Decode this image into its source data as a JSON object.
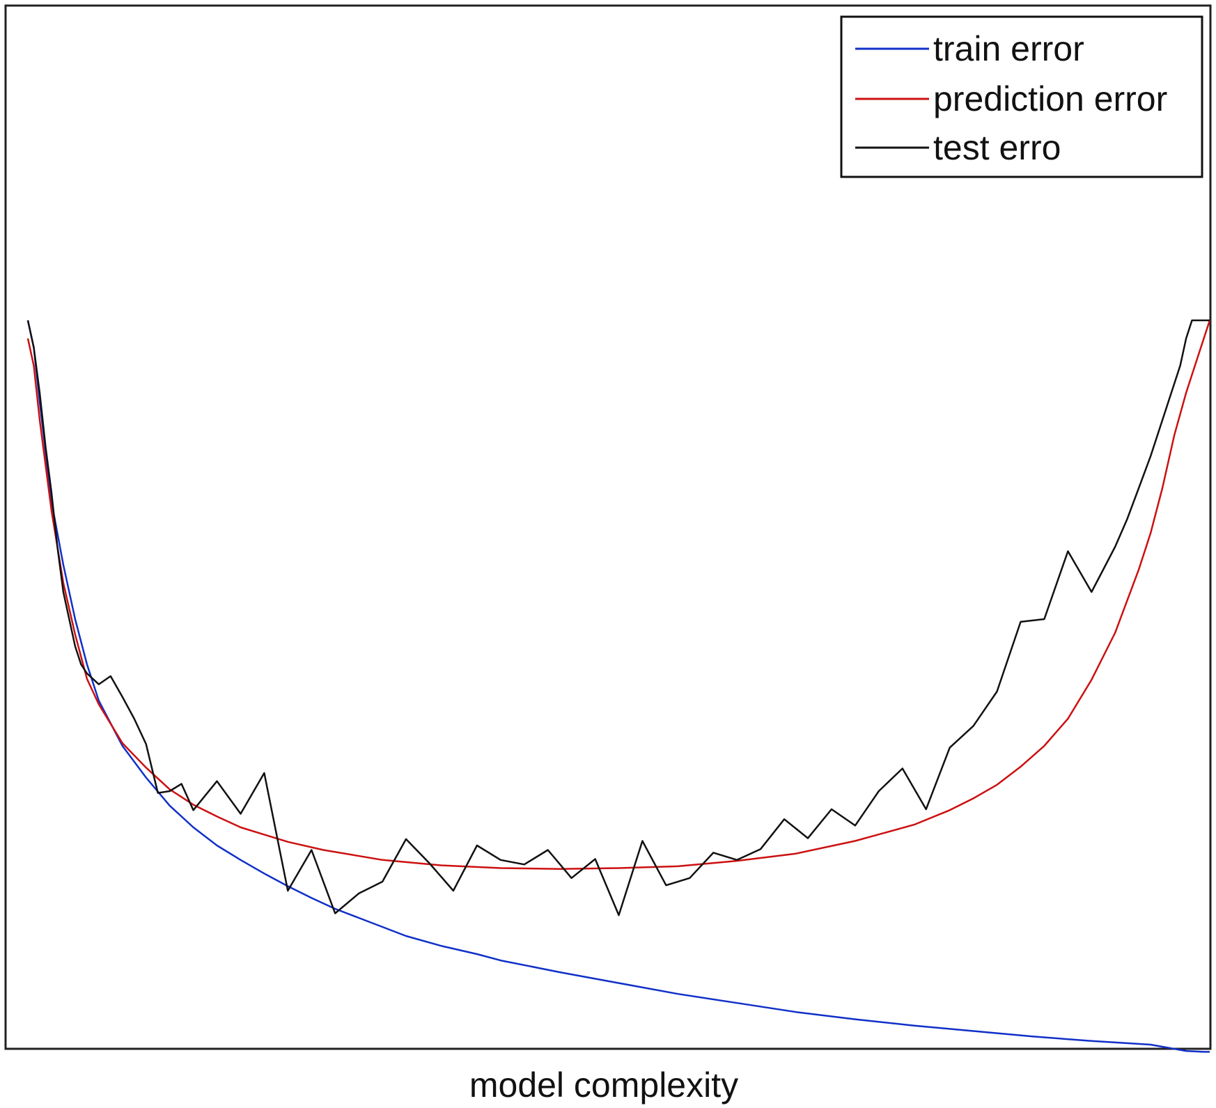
{
  "chart_data": {
    "type": "line",
    "title": "",
    "xlabel": "model complexity",
    "ylabel": "",
    "xlim": [
      0,
      100
    ],
    "ylim": [
      0,
      100
    ],
    "grid": false,
    "legend_position": "top-right",
    "series": [
      {
        "name": "train error",
        "color": "#1030c8",
        "x": [
          0,
          0.5,
          1,
          2,
          3,
          4,
          5,
          6,
          8,
          10,
          12,
          14,
          16,
          18,
          20,
          22,
          24,
          26,
          28,
          30,
          32,
          35,
          38,
          40,
          45,
          50,
          55,
          60,
          65,
          70,
          75,
          80,
          85,
          90,
          95,
          98,
          99.5,
          100
        ],
        "values": [
          80,
          77,
          71,
          60,
          53,
          47,
          42,
          38,
          33,
          29.5,
          26.4,
          24,
          22,
          20.4,
          18.9,
          17.5,
          16.2,
          15,
          14,
          13,
          12,
          10.9,
          10,
          9.3,
          8,
          6.8,
          5.6,
          4.6,
          3.6,
          2.8,
          2.1,
          1.5,
          0.9,
          0.4,
          0.0,
          -0.7,
          -0.8,
          -0.8
        ]
      },
      {
        "name": "prediction error",
        "color": "#cc1010",
        "x": [
          0,
          0.5,
          1,
          2,
          3,
          4,
          5,
          6,
          8,
          10,
          12,
          14,
          16,
          18,
          20,
          22,
          25,
          30,
          35,
          40,
          45,
          50,
          55,
          60,
          65,
          70,
          75,
          78,
          80,
          82,
          84,
          86,
          88,
          90,
          92,
          94,
          95,
          96,
          97,
          98,
          99,
          99.5,
          100
        ],
        "values": [
          78,
          75,
          69,
          59,
          51,
          45.3,
          40.4,
          37.6,
          33.3,
          30.6,
          28.2,
          26.5,
          25.2,
          24,
          23.2,
          22.4,
          21.5,
          20.4,
          19.8,
          19.5,
          19.4,
          19.5,
          19.7,
          20.3,
          21.1,
          22.5,
          24.3,
          25.9,
          27.2,
          28.7,
          30.7,
          33,
          36,
          40.3,
          45.5,
          52.5,
          56.5,
          61.5,
          67.3,
          72,
          76,
          78,
          80
        ]
      },
      {
        "name": "test erro",
        "color": "#111111",
        "x": [
          0,
          0.5,
          1,
          1.5,
          2,
          2.5,
          3,
          4,
          4.5,
          5,
          6,
          7,
          8,
          9,
          10,
          11,
          12,
          13,
          14,
          16,
          18,
          20,
          22,
          24,
          26,
          28,
          30,
          32,
          34,
          36,
          38,
          40,
          42,
          44,
          46,
          48,
          50,
          52,
          54,
          56,
          58,
          60,
          62,
          64,
          66,
          68,
          70,
          72,
          74,
          76,
          78,
          80,
          82,
          84,
          86,
          88,
          90,
          91,
          92,
          93,
          94,
          95,
          96,
          97,
          97.5,
          98,
          98.5,
          99,
          99.5,
          100
        ],
        "values": [
          80,
          77,
          72,
          66,
          61,
          55,
          50,
          44,
          42,
          41,
          39.8,
          40.7,
          38.4,
          36,
          33.2,
          27.8,
          28,
          28.8,
          25.9,
          29.1,
          25.5,
          30,
          17,
          21.5,
          14.5,
          16.7,
          18,
          22.7,
          20,
          17,
          22,
          20.4,
          19.9,
          21.5,
          18.4,
          20.5,
          14.3,
          22.5,
          17.6,
          18.4,
          21.2,
          20.4,
          21.6,
          24.9,
          22.8,
          26,
          24.2,
          28,
          30.5,
          26,
          32.8,
          35.2,
          39,
          46.7,
          47,
          54.5,
          50,
          52.5,
          55,
          58,
          61.5,
          65,
          69,
          73,
          75,
          78,
          80,
          80,
          80,
          80
        ]
      }
    ]
  }
}
